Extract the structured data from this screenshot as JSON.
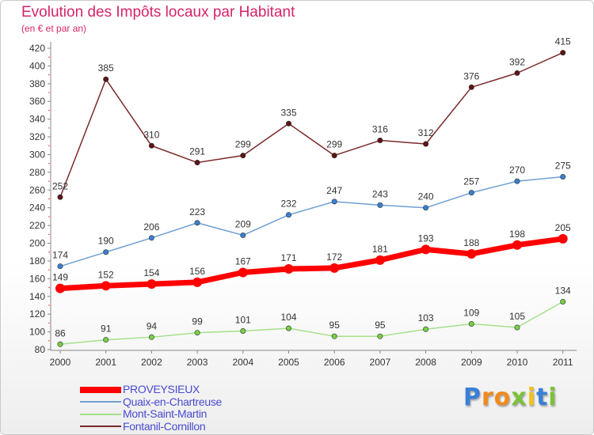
{
  "title": "Evolution des Impôts locaux par Habitant",
  "subtitle": "(en € et par an)",
  "logo": {
    "text": "Proxiti",
    "letters": [
      "P",
      "r",
      "o",
      "x",
      "i",
      "t",
      "i"
    ],
    "colors": [
      "#3a7fd6",
      "#f08a1c",
      "#f08a1c",
      "#7ac23a",
      "#f0c21c",
      "#3a7fd6",
      "#7ac23a"
    ]
  },
  "chart_data": {
    "type": "line",
    "title": "Evolution des Impôts locaux par Habitant",
    "subtitle": "(en € et par an)",
    "x": [
      "2000",
      "2001",
      "2002",
      "2003",
      "2004",
      "2005",
      "2006",
      "2007",
      "2008",
      "2009",
      "2010",
      "2011"
    ],
    "ylim": [
      80,
      420
    ],
    "yticks": [
      80,
      100,
      120,
      140,
      160,
      180,
      200,
      220,
      240,
      260,
      280,
      300,
      320,
      340,
      360,
      380,
      400,
      420
    ],
    "grid": false,
    "legend": "bottom-left",
    "series": [
      {
        "name": "PROVEYSIEUX",
        "color": "#ff0000",
        "marker": "#ff0000",
        "emphasis": true,
        "values": [
          149,
          152,
          154,
          156,
          167,
          171,
          172,
          181,
          193,
          188,
          198,
          205
        ]
      },
      {
        "name": "Quaix-en-Chartreuse",
        "color": "#6e9fd4",
        "marker": "#3b7fd0",
        "emphasis": false,
        "values": [
          174,
          190,
          206,
          223,
          209,
          232,
          247,
          243,
          240,
          257,
          270,
          275
        ]
      },
      {
        "name": "Mont-Saint-Martin",
        "color": "#a5e08a",
        "marker": "#77cf45",
        "emphasis": false,
        "values": [
          86,
          91,
          94,
          99,
          101,
          104,
          95,
          95,
          103,
          109,
          105,
          134
        ]
      },
      {
        "name": "Fontanil-Cornillon",
        "color": "#7a2a2a",
        "marker": "#5e1414",
        "emphasis": false,
        "values": [
          252,
          385,
          310,
          291,
          299,
          335,
          299,
          316,
          312,
          376,
          392,
          415
        ]
      }
    ]
  }
}
